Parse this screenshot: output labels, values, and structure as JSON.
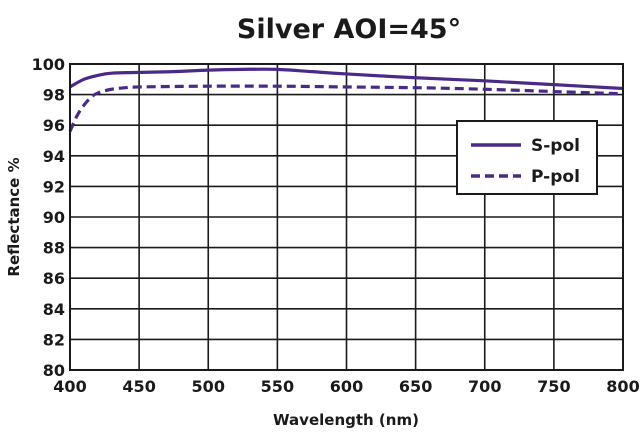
{
  "chart_data": {
    "type": "line",
    "title": "Silver AOI=45°",
    "xlabel": "Wavelength (nm)",
    "ylabel": "Reflectance %",
    "xlim": [
      400,
      800
    ],
    "ylim": [
      80,
      100
    ],
    "x_ticks": [
      400,
      450,
      500,
      550,
      600,
      650,
      700,
      750,
      800
    ],
    "y_ticks": [
      80,
      82,
      84,
      86,
      88,
      90,
      92,
      94,
      96,
      98,
      100
    ],
    "grid": true,
    "legend_position": "right",
    "series": [
      {
        "name": "S-pol",
        "style": "solid",
        "color": "#4b2a87",
        "x": [
          400,
          410,
          420,
          430,
          450,
          475,
          500,
          525,
          550,
          575,
          600,
          650,
          700,
          750,
          800
        ],
        "y": [
          98.5,
          99.0,
          99.25,
          99.4,
          99.45,
          99.5,
          99.6,
          99.65,
          99.65,
          99.5,
          99.35,
          99.1,
          98.9,
          98.65,
          98.4
        ]
      },
      {
        "name": "P-pol",
        "style": "dashed",
        "color": "#4b2a87",
        "x": [
          400,
          405,
          410,
          415,
          420,
          430,
          440,
          450,
          500,
          550,
          600,
          650,
          700,
          750,
          800
        ],
        "y": [
          95.6,
          96.6,
          97.3,
          97.8,
          98.1,
          98.35,
          98.45,
          98.5,
          98.55,
          98.55,
          98.5,
          98.45,
          98.35,
          98.2,
          98.05
        ]
      }
    ]
  }
}
